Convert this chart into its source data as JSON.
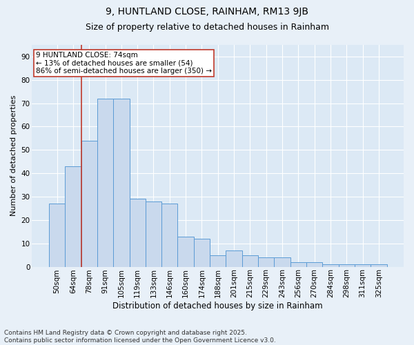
{
  "title1": "9, HUNTLAND CLOSE, RAINHAM, RM13 9JB",
  "title2": "Size of property relative to detached houses in Rainham",
  "xlabel": "Distribution of detached houses by size in Rainham",
  "ylabel": "Number of detached properties",
  "categories": [
    "50sqm",
    "64sqm",
    "78sqm",
    "91sqm",
    "105sqm",
    "119sqm",
    "133sqm",
    "146sqm",
    "160sqm",
    "174sqm",
    "188sqm",
    "201sqm",
    "215sqm",
    "229sqm",
    "243sqm",
    "256sqm",
    "270sqm",
    "284sqm",
    "298sqm",
    "311sqm",
    "325sqm"
  ],
  "values": [
    27,
    43,
    54,
    72,
    72,
    29,
    28,
    27,
    13,
    12,
    5,
    7,
    5,
    4,
    4,
    2,
    2,
    1,
    1,
    1,
    1
  ],
  "bar_color": "#c9d9ed",
  "bar_edge_color": "#5b9bd5",
  "vline_x": 1.5,
  "vline_color": "#c0392b",
  "annotation_text": "9 HUNTLAND CLOSE: 74sqm\n← 13% of detached houses are smaller (54)\n86% of semi-detached houses are larger (350) →",
  "annotation_box_color": "#ffffff",
  "annotation_box_edge": "#c0392b",
  "ylim": [
    0,
    95
  ],
  "yticks": [
    0,
    10,
    20,
    30,
    40,
    50,
    60,
    70,
    80,
    90
  ],
  "footer": "Contains HM Land Registry data © Crown copyright and database right 2025.\nContains public sector information licensed under the Open Government Licence v3.0.",
  "bg_color": "#dce9f5",
  "fig_bg_color": "#e8f0f8",
  "title1_fontsize": 10,
  "title2_fontsize": 9,
  "xlabel_fontsize": 8.5,
  "ylabel_fontsize": 8,
  "footer_fontsize": 6.5,
  "annot_fontsize": 7.5,
  "tick_fontsize": 7.5
}
